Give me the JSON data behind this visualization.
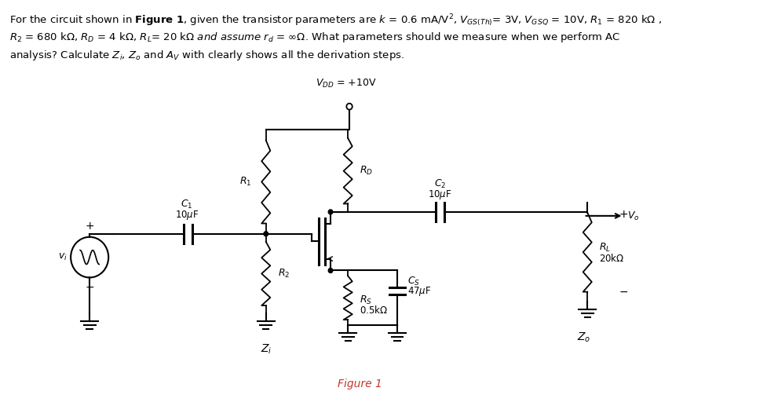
{
  "bg_color": "#ffffff",
  "circuit_color": "#000000",
  "figure_label_color": "#c0392b"
}
